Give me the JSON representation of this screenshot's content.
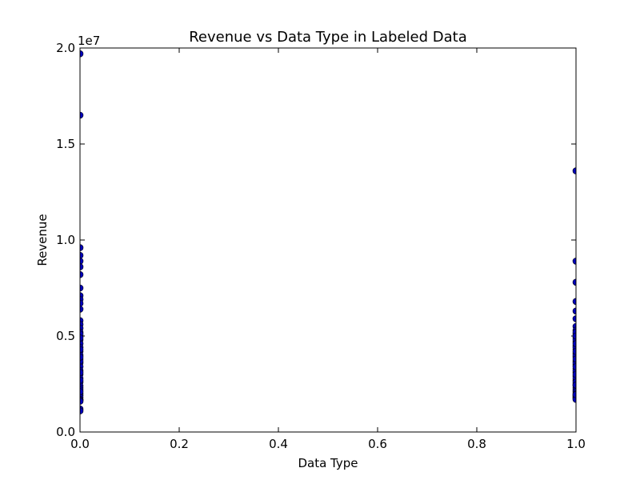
{
  "chart_data": {
    "type": "scatter",
    "title": "Revenue vs Data Type in Labeled Data",
    "xlabel": "Data Type",
    "ylabel": "Revenue",
    "xlim": [
      0.0,
      1.0
    ],
    "ylim": [
      0,
      20000000
    ],
    "y_offset_label": "1e7",
    "x_ticks": [
      "0.0",
      "0.2",
      "0.4",
      "0.6",
      "0.8",
      "1.0"
    ],
    "y_ticks": [
      "0.0",
      "0.5",
      "1.0",
      "1.5",
      "2.0"
    ],
    "grid": false,
    "marker_color": "#0000bf",
    "series": [
      {
        "x": [
          0,
          0,
          0,
          0,
          0,
          0,
          0,
          0,
          0,
          0,
          0,
          0,
          0,
          0,
          0,
          0,
          0,
          0,
          0,
          0,
          0,
          0,
          0,
          0,
          0,
          0,
          0,
          0,
          0,
          0,
          0,
          0,
          0,
          0,
          0,
          0,
          0,
          0,
          0,
          0,
          0,
          0,
          0,
          0,
          0,
          0,
          0,
          0,
          1,
          1,
          1,
          1,
          1,
          1,
          1,
          1,
          1,
          1,
          1,
          1,
          1,
          1,
          1,
          1,
          1,
          1,
          1,
          1,
          1,
          1,
          1,
          1,
          1,
          1,
          1,
          1,
          1,
          1,
          1,
          1,
          1,
          1,
          1,
          1,
          1,
          1,
          1,
          1,
          1,
          1,
          1,
          1,
          1,
          1,
          1,
          1
        ],
        "y": [
          19700000,
          16500000,
          9600000,
          9200000,
          8900000,
          8600000,
          8200000,
          7500000,
          7100000,
          6900000,
          6700000,
          6400000,
          5800000,
          5600000,
          5400000,
          5200000,
          5000000,
          4800000,
          4600000,
          4400000,
          4200000,
          4000000,
          3800000,
          3600000,
          3400000,
          3200000,
          3000000,
          2800000,
          2600000,
          2400000,
          2300000,
          2200000,
          2000000,
          1900000,
          1800000,
          1700000,
          1650000,
          1600000,
          1200000,
          1100000,
          4300000,
          3700000,
          3100000,
          2700000,
          2100000,
          5100000,
          4900000,
          3900000,
          13600000,
          8900000,
          7800000,
          6800000,
          6300000,
          5900000,
          5500000,
          5300000,
          5100000,
          4900000,
          4700000,
          4500000,
          4300000,
          4100000,
          3900000,
          3700000,
          3500000,
          3300000,
          3100000,
          2900000,
          2700000,
          2500000,
          2400000,
          2300000,
          2200000,
          2100000,
          2000000,
          1900000,
          1850000,
          1800000,
          1750000,
          1700000,
          4400000,
          4000000,
          3600000,
          3200000,
          2800000,
          2600000,
          4800000,
          5200000,
          5000000,
          4600000,
          4200000,
          3800000,
          3400000,
          3000000,
          2450000,
          1950000
        ]
      }
    ]
  }
}
